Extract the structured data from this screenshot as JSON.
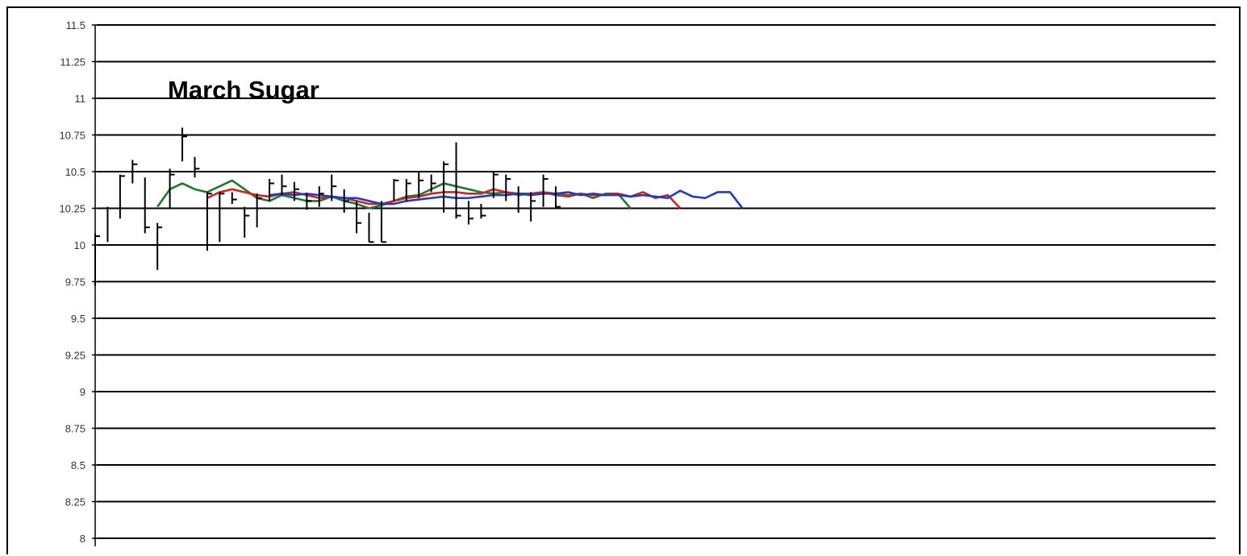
{
  "chart_data": {
    "type": "line",
    "title": "March Sugar",
    "xlabel": "",
    "ylabel": "",
    "ylim": [
      8,
      11.5
    ],
    "yticks": [
      "11.5",
      "11.25",
      "11",
      "10.75",
      "10.5",
      "10.25",
      "10",
      "9.75",
      "9.5",
      "9.25",
      "9",
      "8.75",
      "8.5",
      "8.25",
      "8"
    ],
    "grid": true,
    "x_range": [
      0,
      90
    ],
    "price_bars": [
      {
        "x": 0,
        "high": 10.08,
        "low": 9.72,
        "close": 10.06
      },
      {
        "x": 1,
        "high": 10.26,
        "low": 10.02,
        "close": 10.25
      },
      {
        "x": 2,
        "high": 10.48,
        "low": 10.18,
        "close": 10.47
      },
      {
        "x": 3,
        "high": 10.58,
        "low": 10.42,
        "close": 10.55
      },
      {
        "x": 4,
        "high": 10.46,
        "low": 10.08,
        "close": 10.12
      },
      {
        "x": 5,
        "high": 10.15,
        "low": 9.83,
        "close": 10.12
      },
      {
        "x": 6,
        "high": 10.52,
        "low": 10.25,
        "close": 10.48
      },
      {
        "x": 7,
        "high": 10.8,
        "low": 10.57,
        "close": 10.74
      },
      {
        "x": 8,
        "high": 10.6,
        "low": 10.46,
        "close": 10.52
      },
      {
        "x": 9,
        "high": 10.36,
        "low": 9.96,
        "close": 10.35
      },
      {
        "x": 10,
        "high": 10.36,
        "low": 10.02,
        "close": 10.35
      },
      {
        "x": 11,
        "high": 10.36,
        "low": 10.28,
        "close": 10.31
      },
      {
        "x": 12,
        "high": 10.26,
        "low": 10.05,
        "close": 10.2
      },
      {
        "x": 13,
        "high": 10.35,
        "low": 10.12,
        "close": 10.32
      },
      {
        "x": 14,
        "high": 10.45,
        "low": 10.3,
        "close": 10.42
      },
      {
        "x": 15,
        "high": 10.48,
        "low": 10.34,
        "close": 10.4
      },
      {
        "x": 16,
        "high": 10.43,
        "low": 10.3,
        "close": 10.38
      },
      {
        "x": 17,
        "high": 10.35,
        "low": 10.24,
        "close": 10.3
      },
      {
        "x": 18,
        "high": 10.4,
        "low": 10.26,
        "close": 10.35
      },
      {
        "x": 19,
        "high": 10.48,
        "low": 10.3,
        "close": 10.4
      },
      {
        "x": 20,
        "high": 10.38,
        "low": 10.22,
        "close": 10.3
      },
      {
        "x": 21,
        "high": 10.3,
        "low": 10.08,
        "close": 10.15
      },
      {
        "x": 22,
        "high": 10.22,
        "low": 10.02,
        "close": 10.02
      },
      {
        "x": 23,
        "high": 10.3,
        "low": 10.02,
        "close": 10.02
      },
      {
        "x": 24,
        "high": 10.45,
        "low": 10.3,
        "close": 10.44
      },
      {
        "x": 25,
        "high": 10.45,
        "low": 10.3,
        "close": 10.42
      },
      {
        "x": 26,
        "high": 10.5,
        "low": 10.32,
        "close": 10.44
      },
      {
        "x": 27,
        "high": 10.48,
        "low": 10.36,
        "close": 10.42
      },
      {
        "x": 28,
        "high": 10.57,
        "low": 10.22,
        "close": 10.55
      },
      {
        "x": 29,
        "high": 10.7,
        "low": 10.18,
        "close": 10.2
      },
      {
        "x": 30,
        "high": 10.3,
        "low": 10.14,
        "close": 10.18
      },
      {
        "x": 31,
        "high": 10.28,
        "low": 10.18,
        "close": 10.2
      },
      {
        "x": 32,
        "high": 10.5,
        "low": 10.32,
        "close": 10.48
      },
      {
        "x": 33,
        "high": 10.48,
        "low": 10.3,
        "close": 10.45
      },
      {
        "x": 34,
        "high": 10.4,
        "low": 10.22,
        "close": 10.25
      },
      {
        "x": 35,
        "high": 10.36,
        "low": 10.16,
        "close": 10.3
      },
      {
        "x": 36,
        "high": 10.48,
        "low": 10.26,
        "close": 10.45
      },
      {
        "x": 37,
        "high": 10.4,
        "low": 10.25,
        "close": 10.26
      }
    ],
    "series": [
      {
        "color": "#1e7a2a",
        "x": [
          5,
          6,
          7,
          8,
          9,
          10,
          11,
          12,
          13,
          14,
          15,
          16,
          17,
          18,
          19,
          20,
          21,
          22,
          23,
          24,
          25,
          26,
          27,
          28,
          29,
          30,
          31,
          32,
          33,
          34,
          35,
          36,
          37,
          38,
          39,
          40,
          41,
          42,
          43
        ],
        "values": [
          10.26,
          10.38,
          10.42,
          10.38,
          10.36,
          10.4,
          10.44,
          10.38,
          10.32,
          10.3,
          10.34,
          10.32,
          10.3,
          10.3,
          10.33,
          10.3,
          10.28,
          10.25,
          10.27,
          10.3,
          10.33,
          10.34,
          10.38,
          10.42,
          10.4,
          10.38,
          10.36,
          10.35,
          10.36,
          10.34,
          10.35,
          10.36,
          10.34,
          10.33,
          10.35,
          10.32,
          10.35,
          10.35,
          10.25
        ]
      },
      {
        "color": "#d42020",
        "x": [
          9,
          10,
          11,
          12,
          13,
          14,
          15,
          16,
          17,
          18,
          19,
          20,
          21,
          22,
          23,
          24,
          25,
          26,
          27,
          28,
          29,
          30,
          31,
          32,
          33,
          34,
          35,
          36,
          37,
          38,
          39,
          40,
          41,
          42,
          43,
          44,
          45,
          46,
          47
        ],
        "values": [
          10.32,
          10.36,
          10.38,
          10.36,
          10.34,
          10.33,
          10.35,
          10.36,
          10.34,
          10.32,
          10.33,
          10.32,
          10.3,
          10.28,
          10.28,
          10.3,
          10.32,
          10.33,
          10.35,
          10.36,
          10.36,
          10.35,
          10.35,
          10.38,
          10.36,
          10.35,
          10.35,
          10.36,
          10.35,
          10.34,
          10.35,
          10.34,
          10.34,
          10.35,
          10.33,
          10.36,
          10.32,
          10.34,
          10.25
        ]
      },
      {
        "color": "#1f3bc6",
        "x": [
          14,
          15,
          16,
          17,
          18,
          19,
          20,
          21,
          22,
          23,
          24,
          25,
          26,
          27,
          28,
          29,
          30,
          31,
          32,
          33,
          34,
          35,
          36,
          37,
          38,
          39,
          40,
          41,
          42,
          43,
          44,
          45,
          46,
          47,
          48,
          49,
          50,
          51,
          52
        ],
        "values": [
          10.34,
          10.35,
          10.34,
          10.35,
          10.34,
          10.33,
          10.32,
          10.32,
          10.3,
          10.28,
          10.28,
          10.3,
          10.31,
          10.32,
          10.33,
          10.32,
          10.32,
          10.33,
          10.34,
          10.34,
          10.35,
          10.34,
          10.35,
          10.35,
          10.36,
          10.34,
          10.35,
          10.34,
          10.34,
          10.33,
          10.34,
          10.33,
          10.32,
          10.37,
          10.33,
          10.32,
          10.36,
          10.36,
          10.25
        ]
      }
    ]
  }
}
